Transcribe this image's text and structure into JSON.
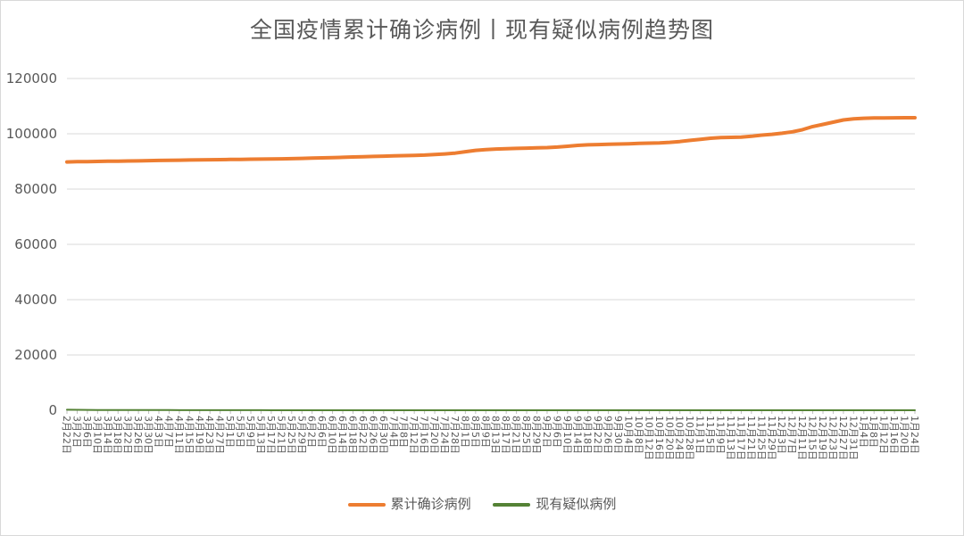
{
  "chart_data": {
    "type": "line",
    "title": "全国疫情累计确诊病例丨现有疑似病例趋势图",
    "xlabel": "",
    "ylabel": "",
    "ylim": [
      0,
      120000
    ],
    "yticks": [
      0,
      20000,
      40000,
      60000,
      80000,
      100000,
      120000
    ],
    "grid": true,
    "legend_position": "bottom",
    "x": [
      "2月22日",
      "3月2日",
      "3月6日",
      "3月10日",
      "3月14日",
      "3月18日",
      "3月22日",
      "3月26日",
      "3月30日",
      "4月3日",
      "4月7日",
      "4月11日",
      "4月15日",
      "4月19日",
      "4月23日",
      "4月27日",
      "5月1日",
      "5月5日",
      "5月9日",
      "5月13日",
      "5月17日",
      "5月21日",
      "5月25日",
      "5月29日",
      "6月2日",
      "6月6日",
      "6月10日",
      "6月14日",
      "6月18日",
      "6月22日",
      "6月26日",
      "6月30日",
      "7月4日",
      "7月8日",
      "7月12日",
      "7月16日",
      "7月20日",
      "7月24日",
      "7月28日",
      "8月1日",
      "8月5日",
      "8月9日",
      "8月13日",
      "8月17日",
      "8月21日",
      "8月25日",
      "8月29日",
      "9月2日",
      "9月6日",
      "9月10日",
      "9月14日",
      "9月18日",
      "9月22日",
      "9月26日",
      "9月30日",
      "10月4日",
      "10月8日",
      "10月12日",
      "10月16日",
      "10月20日",
      "10月24日",
      "10月28日",
      "11月1日",
      "11月5日",
      "11月9日",
      "11月13日",
      "11月17日",
      "11月21日",
      "11月25日",
      "11月29日",
      "12月3日",
      "12月7日",
      "12月11日",
      "12月15日",
      "12月19日",
      "12月23日",
      "12月27日",
      "12月31日",
      "1月4日",
      "1月8日",
      "1月12日",
      "1月16日",
      "1月20日",
      "1月24日"
    ],
    "series": [
      {
        "name": "累计确诊病例",
        "color": "#ed7d31",
        "values": [
          89800,
          89900,
          89950,
          90000,
          90050,
          90100,
          90150,
          90200,
          90300,
          90350,
          90400,
          90450,
          90500,
          90550,
          90600,
          90650,
          90700,
          90750,
          90800,
          90850,
          90900,
          90950,
          91000,
          91100,
          91200,
          91300,
          91400,
          91500,
          91600,
          91700,
          91800,
          91900,
          92000,
          92100,
          92200,
          92300,
          92500,
          92700,
          93000,
          93500,
          94000,
          94300,
          94500,
          94600,
          94700,
          94800,
          94900,
          95000,
          95200,
          95500,
          95800,
          96000,
          96100,
          96200,
          96300,
          96400,
          96500,
          96600,
          96700,
          96900,
          97200,
          97600,
          98000,
          98400,
          98600,
          98700,
          98800,
          99100,
          99500,
          99800,
          100200,
          100700,
          101500,
          102600,
          103400,
          104200,
          105000,
          105400,
          105600,
          105700,
          105750,
          105780,
          105800,
          105820
        ]
      },
      {
        "name": "现有疑似病例",
        "color": "#548235",
        "values": [
          200,
          150,
          120,
          100,
          90,
          80,
          70,
          60,
          60,
          55,
          50,
          45,
          40,
          35,
          30,
          28,
          25,
          22,
          20,
          18,
          16,
          15,
          14,
          12,
          10,
          10,
          9,
          8,
          8,
          7,
          7,
          6,
          6,
          5,
          5,
          5,
          4,
          4,
          4,
          4,
          3,
          3,
          3,
          3,
          3,
          3,
          2,
          2,
          2,
          2,
          2,
          2,
          2,
          2,
          2,
          2,
          2,
          2,
          2,
          2,
          2,
          2,
          2,
          2,
          2,
          2,
          2,
          2,
          2,
          2,
          2,
          2,
          2,
          2,
          2,
          2,
          2,
          2,
          2,
          2,
          2,
          2,
          2,
          2
        ]
      }
    ]
  }
}
